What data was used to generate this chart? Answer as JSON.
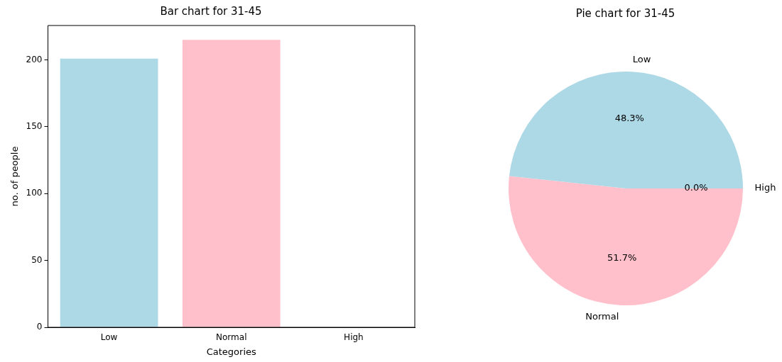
{
  "chart_data": [
    {
      "type": "bar",
      "title": "Bar chart for 31-45",
      "xlabel": "Categories",
      "ylabel": "no. of people",
      "categories": [
        "Low",
        "Normal",
        "High"
      ],
      "values": [
        201,
        215,
        0
      ],
      "colors": [
        "#add8e6",
        "#ffc0cb",
        "#add8e6"
      ],
      "ylim": [
        0,
        225.75
      ],
      "yticks": [
        0,
        50,
        100,
        150,
        200
      ],
      "grid": false,
      "legend": false
    },
    {
      "type": "pie",
      "title": "Pie chart for 31-45",
      "categories": [
        "Low",
        "Normal",
        "High"
      ],
      "values": [
        48.3,
        51.7,
        0
      ],
      "value_labels": [
        "48.3%",
        "51.7%",
        "0.0%"
      ],
      "colors": [
        "#add8e6",
        "#ffc0cb",
        "#add8e6"
      ],
      "legend": false
    }
  ]
}
